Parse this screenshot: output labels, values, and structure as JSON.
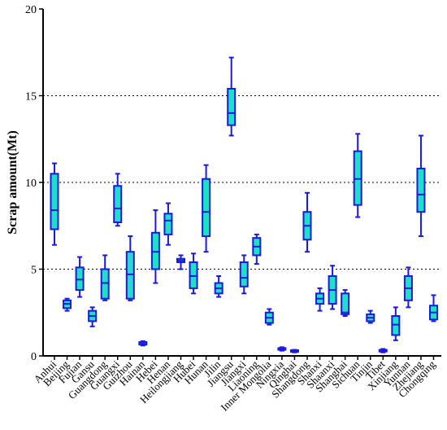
{
  "chart_data": {
    "type": "boxplot",
    "ylabel": "Scrap amount(Mt)",
    "ylim": [
      0,
      20
    ],
    "yticks": [
      "0",
      "5",
      "10",
      "15",
      "20"
    ],
    "grid": "horizontal dotted at 5, 10, 15",
    "colors": {
      "box_fill": "#1ee0c8",
      "stroke": "#1a1adf"
    },
    "categories": [
      "Anhui",
      "Beijing",
      "Fujian",
      "Gansu",
      "Guangdong",
      "Guangxi",
      "Guizhou",
      "Hainan",
      "Hebei",
      "Henan",
      "Heilongjiang",
      "Hubei",
      "Hunan",
      "Jilin",
      "Jiangsu",
      "Jiangxi",
      "Liaoning",
      "Inner Mongolia",
      "Ningxia",
      "Qinghai",
      "Shangdong",
      "Shanxi",
      "Shaanxi",
      "Shanghai",
      "Sichuan",
      "Tinjin",
      "Tibet",
      "Xinjiang",
      "Yunnan",
      "Zhejiang",
      "Chongqing"
    ],
    "boxes": [
      {
        "min": 6.4,
        "q1": 7.3,
        "median": 8.4,
        "q3": 10.5,
        "max": 11.1
      },
      {
        "min": 2.6,
        "q1": 2.75,
        "median": 3.0,
        "q3": 3.2,
        "max": 3.3
      },
      {
        "min": 3.4,
        "q1": 3.8,
        "median": 4.4,
        "q3": 5.1,
        "max": 5.7
      },
      {
        "min": 1.7,
        "q1": 2.0,
        "median": 2.3,
        "q3": 2.6,
        "max": 2.8
      },
      {
        "min": 3.2,
        "q1": 3.3,
        "median": 4.2,
        "q3": 5.0,
        "max": 5.8
      },
      {
        "min": 7.5,
        "q1": 7.7,
        "median": 8.5,
        "q3": 9.8,
        "max": 10.5
      },
      {
        "min": 3.2,
        "q1": 3.3,
        "median": 4.7,
        "q3": 6.0,
        "max": 6.9
      },
      {
        "min": 0.6,
        "q1": 0.65,
        "median": 0.7,
        "q3": 0.8,
        "max": 0.85
      },
      {
        "min": 4.2,
        "q1": 5.0,
        "median": 6.0,
        "q3": 7.1,
        "max": 8.4
      },
      {
        "min": 6.4,
        "q1": 7.0,
        "median": 7.8,
        "q3": 8.2,
        "max": 8.8
      },
      {
        "min": 5.0,
        "q1": 5.4,
        "median": 5.5,
        "q3": 5.6,
        "max": 5.8
      },
      {
        "min": 3.6,
        "q1": 3.9,
        "median": 4.6,
        "q3": 5.4,
        "max": 5.9
      },
      {
        "min": 6.0,
        "q1": 6.9,
        "median": 8.3,
        "q3": 10.2,
        "max": 11.0
      },
      {
        "min": 3.4,
        "q1": 3.6,
        "median": 3.9,
        "q3": 4.2,
        "max": 4.6
      },
      {
        "min": 12.7,
        "q1": 13.3,
        "median": 14.0,
        "q3": 15.4,
        "max": 17.2
      },
      {
        "min": 3.6,
        "q1": 4.0,
        "median": 4.5,
        "q3": 5.4,
        "max": 5.8
      },
      {
        "min": 5.3,
        "q1": 5.8,
        "median": 6.3,
        "q3": 6.8,
        "max": 7.0
      },
      {
        "min": 1.8,
        "q1": 1.9,
        "median": 2.2,
        "q3": 2.5,
        "max": 2.7
      },
      {
        "min": 0.3,
        "q1": 0.35,
        "median": 0.4,
        "q3": 0.45,
        "max": 0.5
      },
      {
        "min": 0.2,
        "q1": 0.25,
        "median": 0.3,
        "q3": 0.33,
        "max": 0.35
      },
      {
        "min": 6.0,
        "q1": 6.7,
        "median": 7.5,
        "q3": 8.3,
        "max": 9.4
      },
      {
        "min": 2.6,
        "q1": 3.0,
        "median": 3.3,
        "q3": 3.6,
        "max": 3.9
      },
      {
        "min": 2.7,
        "q1": 3.0,
        "median": 3.8,
        "q3": 4.6,
        "max": 5.2
      },
      {
        "min": 2.3,
        "q1": 2.4,
        "median": 2.5,
        "q3": 3.6,
        "max": 3.8
      },
      {
        "min": 8.0,
        "q1": 8.7,
        "median": 10.2,
        "q3": 11.8,
        "max": 12.8
      },
      {
        "min": 1.9,
        "q1": 2.0,
        "median": 2.2,
        "q3": 2.4,
        "max": 2.6
      },
      {
        "min": 0.2,
        "q1": 0.25,
        "median": 0.3,
        "q3": 0.35,
        "max": 0.4
      },
      {
        "min": 0.9,
        "q1": 1.2,
        "median": 1.8,
        "q3": 2.3,
        "max": 2.8
      },
      {
        "min": 2.8,
        "q1": 3.2,
        "median": 3.9,
        "q3": 4.6,
        "max": 5.1
      },
      {
        "min": 6.9,
        "q1": 8.3,
        "median": 9.3,
        "q3": 10.8,
        "max": 12.7
      },
      {
        "min": 2.0,
        "q1": 2.1,
        "median": 2.5,
        "q3": 2.9,
        "max": 3.5
      }
    ]
  }
}
